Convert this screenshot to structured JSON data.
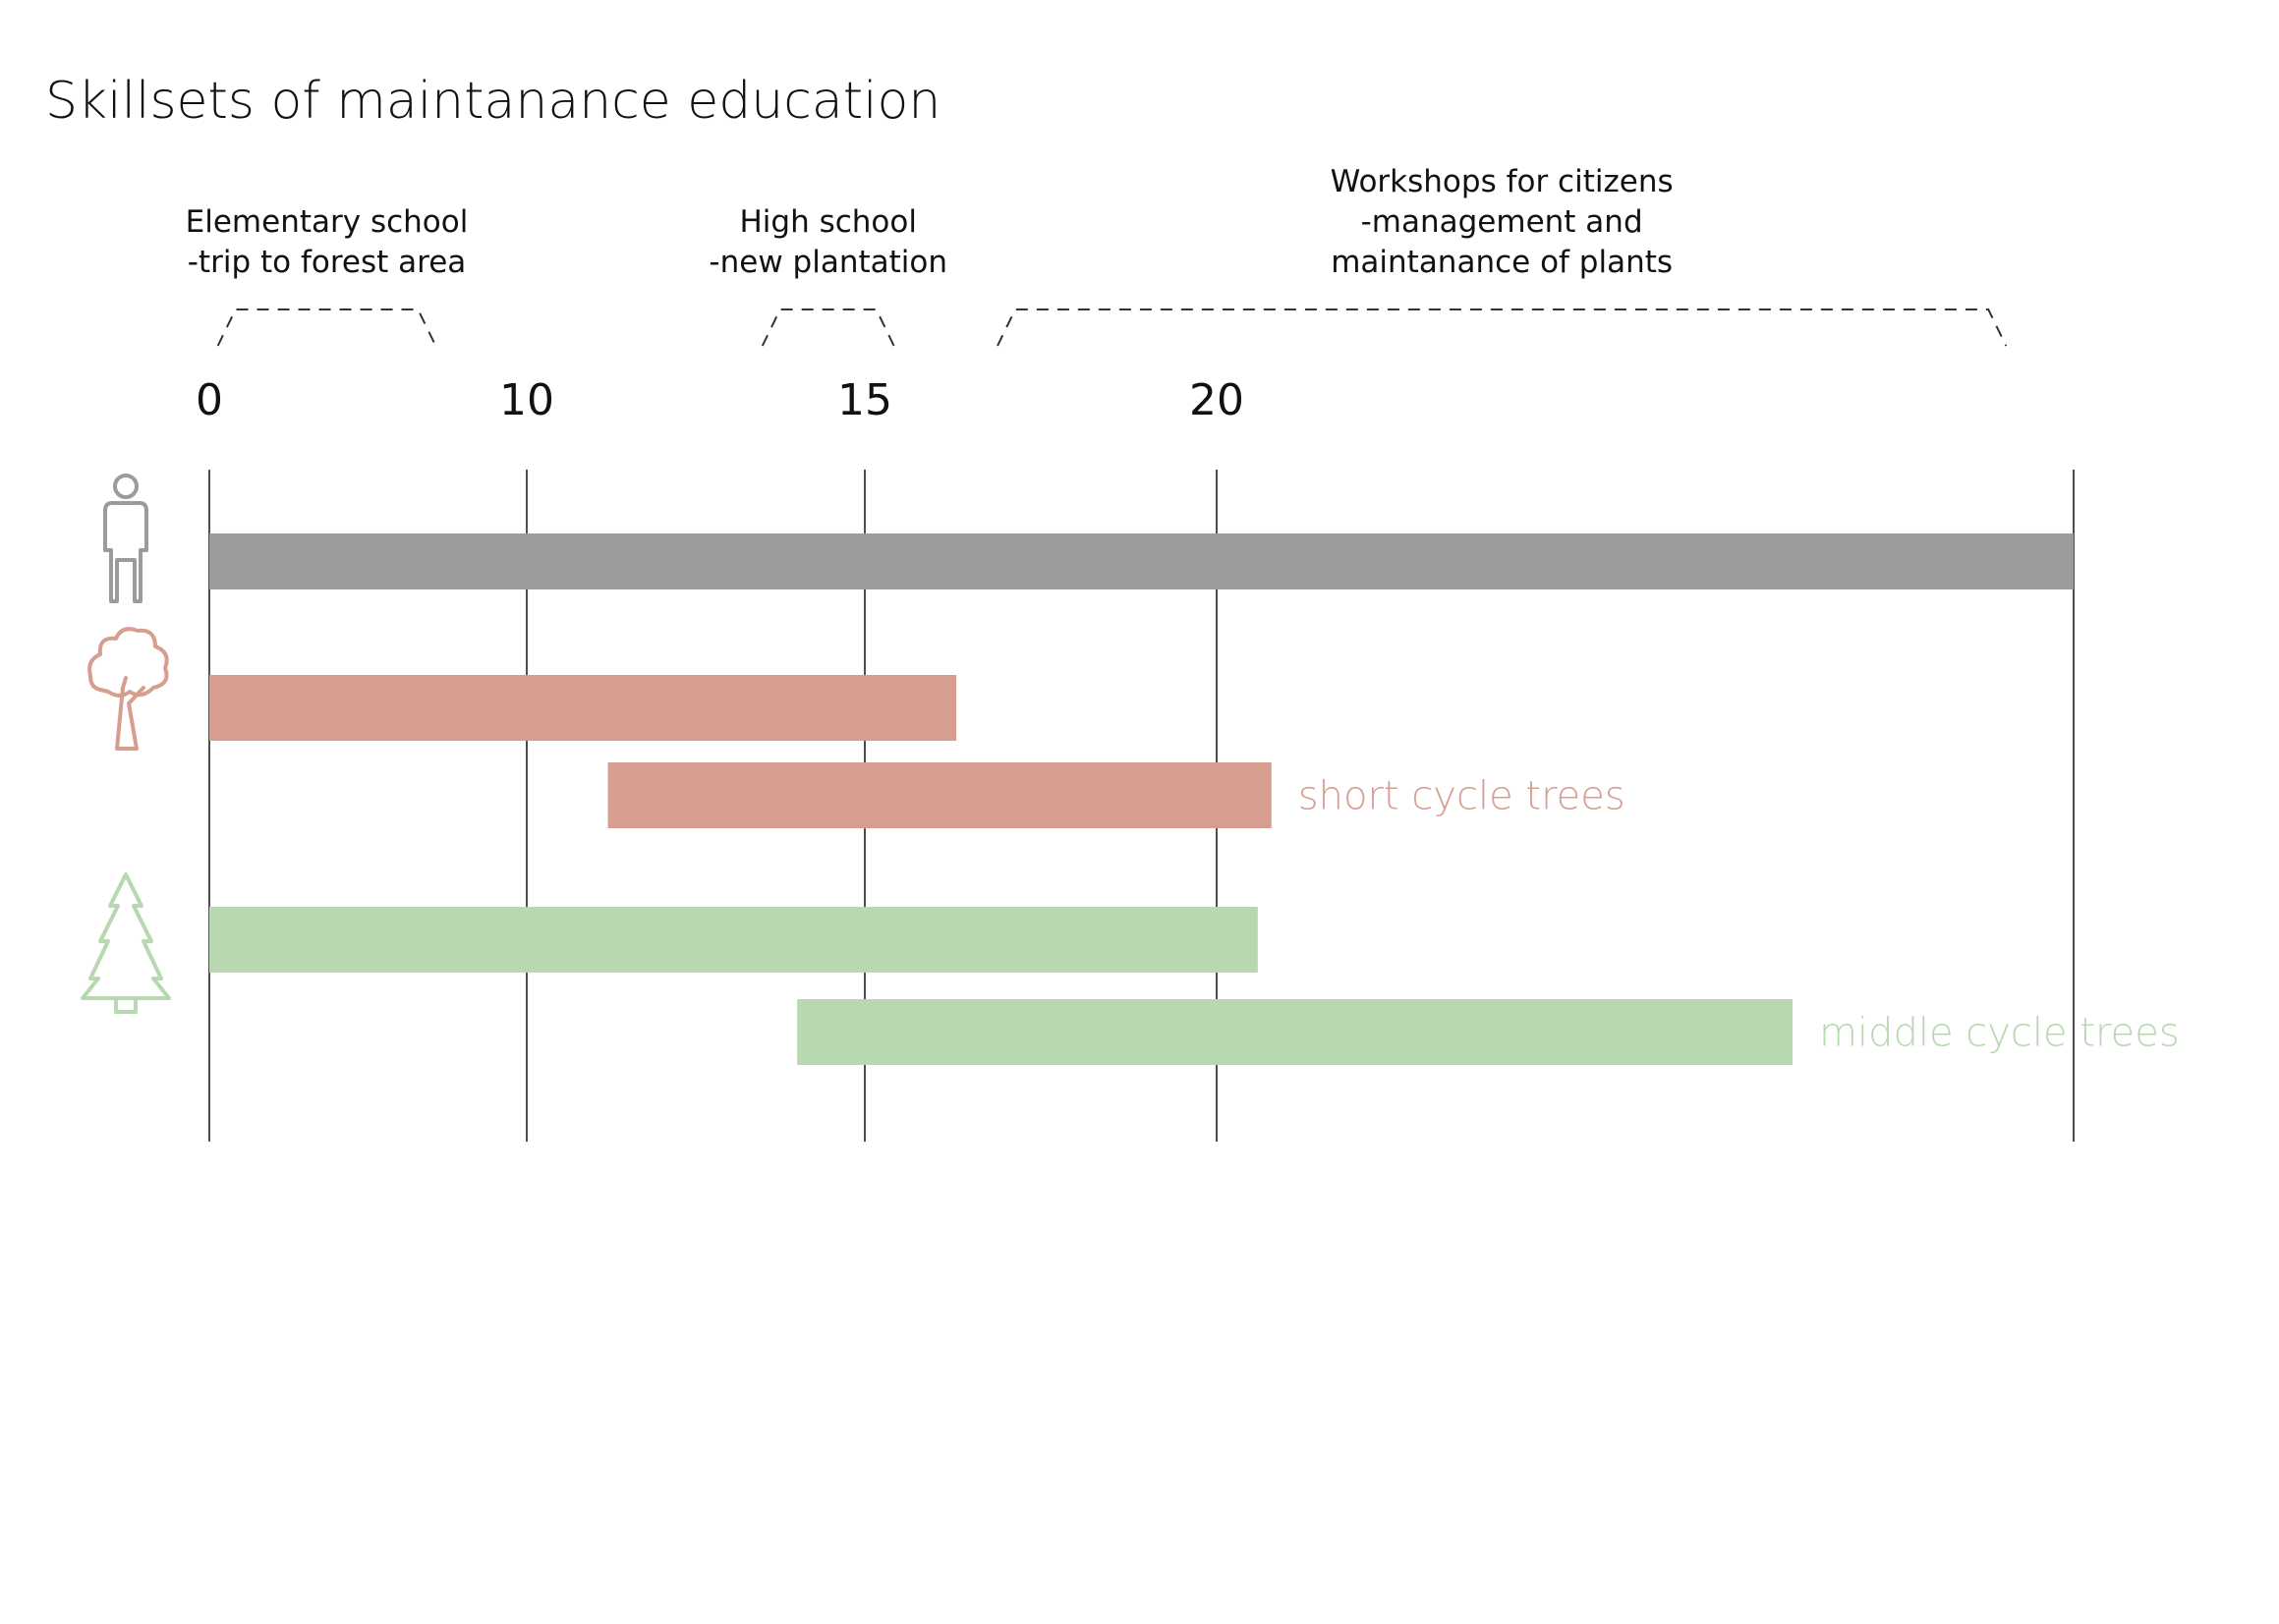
{
  "chart_data": {
    "type": "bar",
    "title": "Skillsets of maintanance education",
    "xlabel": "",
    "ylabel": "",
    "x_ticks": [
      0,
      10,
      15,
      20
    ],
    "grid": "vertical lines",
    "phases": [
      {
        "name": "elementary",
        "lines": [
          "Elementary school",
          "-trip to forest area"
        ],
        "start": 0.3,
        "end": 7.1
      },
      {
        "name": "highschool",
        "lines": [
          "High school",
          "-new plantation"
        ],
        "start": 13.5,
        "end": 15.4
      },
      {
        "name": "workshops",
        "lines": [
          "Workshops for citizens",
          "-management and",
          "maintanance of plants"
        ],
        "start": 16.9,
        "end": 43.0
      }
    ],
    "series": [
      {
        "key": "human",
        "name": "",
        "color": "#9b9b9b",
        "icon": "person-icon",
        "bars": [
          {
            "start": 0,
            "end": 45
          }
        ]
      },
      {
        "key": "short",
        "name": "short cycle trees",
        "color": "#d79e90",
        "icon": "deciduous-tree-icon",
        "bars": [
          {
            "start": 0,
            "end": 16.3
          },
          {
            "start": 11.2,
            "end": 21.6
          }
        ]
      },
      {
        "key": "middle",
        "name": "middle cycle trees",
        "color": "#b7d8b1",
        "icon": "pine-tree-icon",
        "bars": [
          {
            "start": 0,
            "end": 21.2
          },
          {
            "start": 14.0,
            "end": 36.8
          }
        ]
      }
    ]
  }
}
